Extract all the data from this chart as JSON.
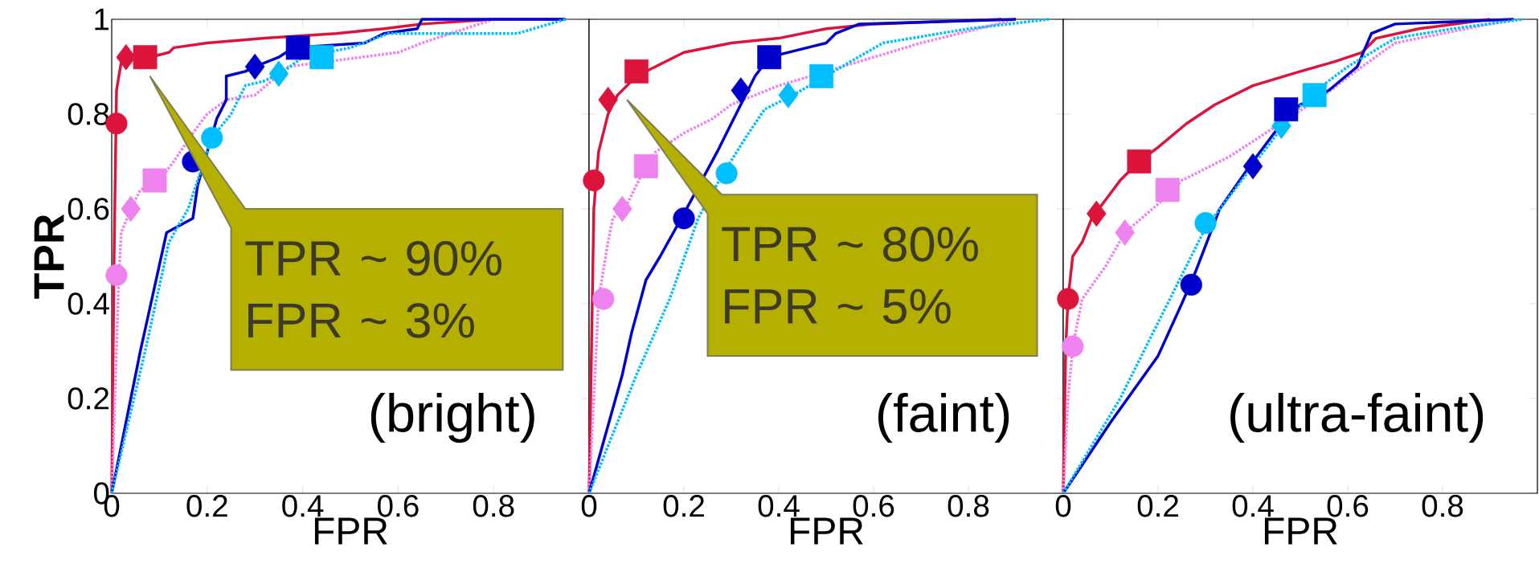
{
  "chart_data": [
    {
      "type": "line",
      "xlabel": "FPR",
      "ylabel": "TPR",
      "xlim": [
        0,
        1
      ],
      "ylim": [
        0,
        1
      ],
      "xticks": [
        0,
        0.2,
        0.4,
        0.6,
        0.8
      ],
      "yticks": [
        0,
        0.2,
        0.4,
        0.6,
        0.8,
        1
      ],
      "series": [
        {
          "type": "line",
          "color": "#dc143c",
          "line_style": "solid",
          "x": [
            0,
            0.005,
            0.01,
            0.02,
            0.04,
            0.08,
            0.12,
            0.13,
            0.2,
            0.32,
            0.47,
            0.57,
            0.65,
            0.8,
            0.95
          ],
          "values": [
            0,
            0.5,
            0.85,
            0.91,
            0.92,
            0.92,
            0.93,
            0.94,
            0.95,
            0.96,
            0.97,
            0.98,
            0.99,
            1.0,
            1.0
          ]
        },
        {
          "type": "line",
          "color": "#ee82ee",
          "line_style": "dotted",
          "x": [
            0,
            0.01,
            0.015,
            0.02,
            0.04,
            0.06,
            0.1,
            0.13,
            0.17,
            0.2,
            0.24,
            0.3,
            0.37,
            0.46,
            0.6,
            0.65,
            0.8,
            0.95
          ],
          "values": [
            0,
            0.3,
            0.46,
            0.55,
            0.6,
            0.64,
            0.66,
            0.7,
            0.76,
            0.8,
            0.83,
            0.84,
            0.9,
            null,
            0.93,
            0.95,
            1.0,
            1.0
          ]
        },
        {
          "type": "line",
          "color": "#0000cd",
          "line_style": "solid",
          "x": [
            0,
            0.06,
            0.115,
            0.17,
            0.18,
            0.2,
            0.22,
            0.24,
            0.24,
            0.28,
            0.3,
            0.35,
            0.38,
            0.53,
            0.57,
            0.64,
            0.65,
            0.95
          ],
          "values": [
            0,
            0.3,
            0.55,
            0.58,
            0.65,
            null,
            0.79,
            0.83,
            0.88,
            0.89,
            0.9,
            0.92,
            0.94,
            0.95,
            0.97,
            0.98,
            1.0,
            1.0
          ]
        },
        {
          "type": "line",
          "color": "#00bfff",
          "line_style": "dotted",
          "x": [
            0,
            0.07,
            0.12,
            0.16,
            0.19,
            0.21,
            0.25,
            0.28,
            0.32,
            0.36,
            0.4,
            0.5,
            0.58,
            0.85,
            0.95
          ],
          "values": [
            0,
            0.3,
            0.53,
            0.6,
            null,
            0.75,
            0.8,
            0.86,
            0.87,
            0.89,
            0.92,
            0.94,
            0.97,
            0.97,
            1.0
          ]
        },
        {
          "type": "scatter",
          "marker": "circle",
          "x": [
            0.01,
            0.01,
            0.17,
            0.21
          ],
          "values": [
            0.78,
            0.46,
            0.7,
            0.75
          ],
          "colors": [
            "#dc143c",
            "#ee82ee",
            "#0000cd",
            "#00bfff"
          ]
        },
        {
          "type": "scatter",
          "marker": "diamond",
          "x": [
            0.03,
            0.04,
            0.3,
            0.35
          ],
          "values": [
            0.92,
            0.6,
            0.9,
            0.885
          ],
          "colors": [
            "#dc143c",
            "#ee82ee",
            "#0000cd",
            "#00bfff"
          ]
        },
        {
          "type": "scatter",
          "marker": "square",
          "x": [
            0.07,
            0.09,
            0.39,
            0.44
          ],
          "values": [
            0.92,
            0.66,
            0.94,
            0.92
          ],
          "colors": [
            "#dc143c",
            "#ee82ee",
            "#0000cd",
            "#00bfff"
          ]
        }
      ],
      "annotations": [
        "TPR ~ 90% FPR ~ 3%",
        "(bright)"
      ]
    },
    {
      "type": "line",
      "xlabel": "FPR",
      "xlim": [
        0,
        1
      ],
      "ylim": [
        0,
        1
      ],
      "tick_labels": "x",
      "xticks": [
        0,
        0.2,
        0.4,
        0.6,
        0.8
      ],
      "yticks": [
        0,
        0.2,
        0.4,
        0.6,
        0.8,
        1
      ],
      "series": [
        {
          "type": "line",
          "color": "#dc143c",
          "line_style": "solid",
          "x": [
            0,
            0.005,
            0.01,
            0.02,
            0.04,
            0.06,
            0.1,
            0.14,
            0.2,
            0.3,
            0.4,
            0.5,
            0.6,
            0.87
          ],
          "values": [
            0,
            0.3,
            0.6,
            0.72,
            0.8,
            0.84,
            0.88,
            0.9,
            0.93,
            0.95,
            0.96,
            0.98,
            0.99,
            1.0
          ]
        },
        {
          "type": "line",
          "color": "#ee82ee",
          "line_style": "dotted",
          "x": [
            0,
            0.01,
            0.02,
            0.04,
            0.05,
            0.08,
            0.11,
            0.14,
            0.2,
            0.26,
            0.3,
            0.4,
            0.5,
            0.6,
            0.7,
            0.9
          ],
          "values": [
            0,
            0.2,
            0.41,
            0.53,
            0.58,
            0.61,
            0.67,
            0.72,
            0.76,
            0.79,
            0.82,
            0.86,
            null,
            0.92,
            0.95,
            1.0
          ]
        },
        {
          "type": "line",
          "color": "#0000cd",
          "line_style": "solid",
          "x": [
            0,
            0.07,
            0.09,
            0.12,
            0.15,
            0.2,
            0.25,
            0.27,
            0.3,
            0.33,
            0.35,
            0.38,
            0.5,
            0.52,
            0.57,
            0.9
          ],
          "values": [
            0,
            0.25,
            0.34,
            0.45,
            0.5,
            0.59,
            null,
            0.72,
            0.78,
            0.84,
            0.88,
            0.92,
            0.95,
            0.97,
            0.99,
            1.0
          ]
        },
        {
          "type": "line",
          "color": "#00bfff",
          "line_style": "dotted",
          "x": [
            0,
            0.1,
            0.17,
            0.23,
            0.28,
            0.33,
            0.37,
            0.43,
            0.5,
            0.55,
            0.62,
            0.8,
            0.97
          ],
          "values": [
            0,
            0.25,
            0.41,
            0.58,
            0.67,
            0.75,
            0.81,
            0.84,
            0.88,
            0.91,
            0.95,
            0.98,
            1.0
          ]
        },
        {
          "type": "scatter",
          "marker": "circle",
          "x": [
            0.01,
            0.03,
            0.2,
            0.29
          ],
          "values": [
            0.66,
            0.41,
            0.58,
            0.675
          ],
          "colors": [
            "#dc143c",
            "#ee82ee",
            "#0000cd",
            "#00bfff"
          ]
        },
        {
          "type": "scatter",
          "marker": "diamond",
          "x": [
            0.04,
            0.07,
            0.32,
            0.42
          ],
          "values": [
            0.83,
            0.6,
            0.85,
            0.84
          ],
          "colors": [
            "#dc143c",
            "#ee82ee",
            "#0000cd",
            "#00bfff"
          ]
        },
        {
          "type": "scatter",
          "marker": "square",
          "x": [
            0.1,
            0.12,
            0.38,
            0.49
          ],
          "values": [
            0.89,
            0.69,
            0.92,
            0.88
          ],
          "colors": [
            "#dc143c",
            "#ee82ee",
            "#0000cd",
            "#00bfff"
          ]
        }
      ],
      "annotations": [
        "TPR ~ 80% FPR ~ 5%",
        "(faint)"
      ]
    },
    {
      "type": "line",
      "xlabel": "FPR",
      "xlim": [
        0,
        1
      ],
      "ylim": [
        0,
        1
      ],
      "tick_labels": "x",
      "xticks": [
        0,
        0.2,
        0.4,
        0.6,
        0.8
      ],
      "yticks": [
        0,
        0.2,
        0.4,
        0.6,
        0.8,
        1
      ],
      "series": [
        {
          "type": "line",
          "color": "#dc143c",
          "line_style": "solid",
          "x": [
            0,
            0.005,
            0.01,
            0.02,
            0.04,
            0.06,
            0.09,
            0.12,
            0.16,
            0.2,
            0.26,
            0.32,
            0.4,
            0.5,
            0.57,
            0.63,
            0.66,
            0.75,
            0.9
          ],
          "values": [
            0,
            0.3,
            0.41,
            0.5,
            0.53,
            0.58,
            0.62,
            0.66,
            0.7,
            0.73,
            0.78,
            0.82,
            0.86,
            0.89,
            0.91,
            0.93,
            0.96,
            0.98,
            1.0
          ]
        },
        {
          "type": "line",
          "color": "#ee82ee",
          "line_style": "dotted",
          "x": [
            0,
            0.01,
            0.02,
            0.04,
            0.09,
            0.13,
            0.2,
            0.25,
            0.35,
            0.45,
            0.55,
            0.63,
            0.7,
            0.8,
            0.95
          ],
          "values": [
            0,
            0.2,
            0.31,
            0.41,
            0.48,
            0.55,
            0.61,
            0.66,
            0.71,
            null,
            0.84,
            0.9,
            0.95,
            0.97,
            1.0
          ]
        },
        {
          "type": "line",
          "color": "#0000cd",
          "line_style": "solid",
          "x": [
            0,
            0.1,
            0.2,
            0.25,
            0.28,
            0.33,
            0.4,
            0.46,
            0.5,
            0.56,
            0.62,
            0.65,
            0.7,
            0.95
          ],
          "values": [
            0,
            0.15,
            0.29,
            0.4,
            0.47,
            0.6,
            0.7,
            0.78,
            0.82,
            0.85,
            0.9,
            0.97,
            0.99,
            1.0
          ]
        },
        {
          "type": "line",
          "color": "#00bfff",
          "line_style": "dotted",
          "x": [
            0,
            0.12,
            0.21,
            0.3,
            0.4,
            0.46,
            0.52,
            0.6,
            0.7,
            0.82,
            0.97
          ],
          "values": [
            0,
            0.2,
            0.38,
            0.56,
            null,
            0.77,
            0.84,
            0.9,
            0.96,
            0.98,
            1.0
          ]
        },
        {
          "type": "scatter",
          "marker": "circle",
          "x": [
            0.01,
            0.02,
            0.27,
            0.3
          ],
          "values": [
            0.41,
            0.31,
            0.44,
            0.57
          ],
          "colors": [
            "#dc143c",
            "#ee82ee",
            "#0000cd",
            "#00bfff"
          ]
        },
        {
          "type": "scatter",
          "marker": "diamond",
          "x": [
            0.07,
            0.13,
            0.4,
            0.46
          ],
          "values": [
            0.59,
            0.55,
            0.69,
            0.775
          ],
          "colors": [
            "#dc143c",
            "#ee82ee",
            "#0000cd",
            "#00bfff"
          ]
        },
        {
          "type": "scatter",
          "marker": "square",
          "x": [
            0.16,
            0.22,
            0.47,
            0.53
          ],
          "values": [
            0.7,
            0.64,
            0.81,
            0.84
          ],
          "colors": [
            "#dc143c",
            "#ee82ee",
            "#0000cd",
            "#00bfff"
          ]
        }
      ],
      "annotations": [
        "(ultra-faint)"
      ]
    }
  ]
}
